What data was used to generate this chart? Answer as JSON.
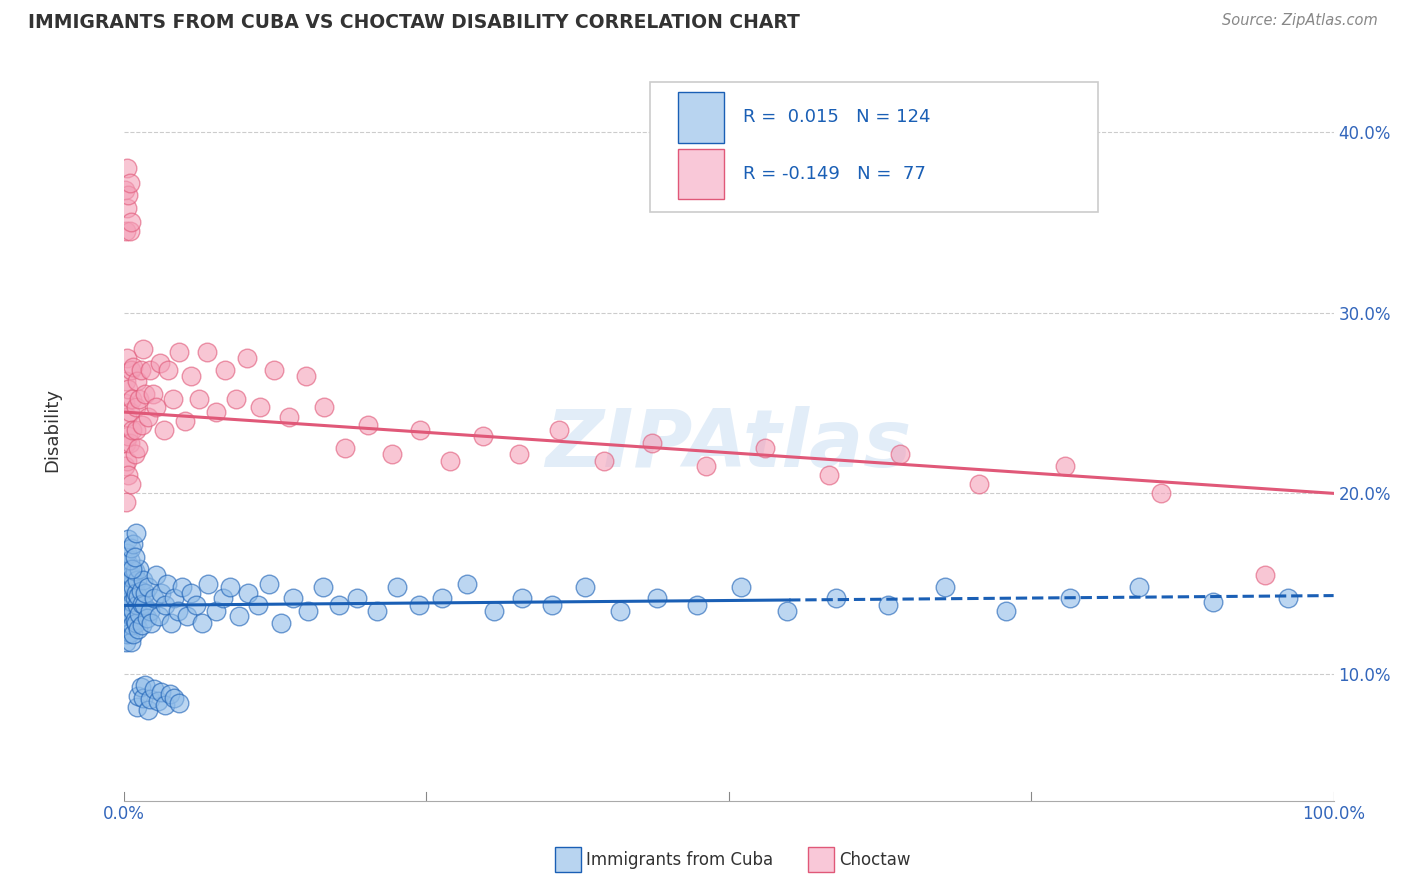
{
  "title": "IMMIGRANTS FROM CUBA VS CHOCTAW DISABILITY CORRELATION CHART",
  "source": "Source: ZipAtlas.com",
  "ylabel": "Disability",
  "yticks": [
    0.1,
    0.2,
    0.3,
    0.4
  ],
  "ytick_labels": [
    "10.0%",
    "20.0%",
    "30.0%",
    "40.0%"
  ],
  "xlim": [
    0.0,
    1.0
  ],
  "ylim": [
    0.03,
    0.44
  ],
  "watermark": "ZIPAtlas",
  "blue_line_x0": 0.0,
  "blue_line_x1": 0.55,
  "blue_line_xd0": 0.55,
  "blue_line_xd1": 1.0,
  "blue_line_y0": 0.138,
  "blue_line_y1": 0.141,
  "pink_line_x0": 0.0,
  "pink_line_x1": 1.0,
  "pink_line_y0": 0.245,
  "pink_line_y1": 0.2,
  "scatter_color_blue": "#90bce8",
  "scatter_color_pink": "#f4a0b8",
  "line_color_blue": "#1a5fb5",
  "line_color_pink": "#e05878",
  "legend_box_blue": "#b8d4f0",
  "legend_box_pink": "#f9c8d8",
  "blue_scatter_x": [
    0.001,
    0.001,
    0.001,
    0.002,
    0.002,
    0.002,
    0.002,
    0.002,
    0.003,
    0.003,
    0.003,
    0.003,
    0.003,
    0.004,
    0.004,
    0.004,
    0.004,
    0.005,
    0.005,
    0.005,
    0.005,
    0.006,
    0.006,
    0.006,
    0.006,
    0.007,
    0.007,
    0.007,
    0.008,
    0.008,
    0.008,
    0.009,
    0.009,
    0.009,
    0.01,
    0.01,
    0.011,
    0.011,
    0.012,
    0.012,
    0.013,
    0.013,
    0.014,
    0.015,
    0.015,
    0.016,
    0.017,
    0.018,
    0.019,
    0.02,
    0.022,
    0.023,
    0.025,
    0.027,
    0.029,
    0.031,
    0.034,
    0.036,
    0.039,
    0.042,
    0.045,
    0.048,
    0.052,
    0.056,
    0.06,
    0.065,
    0.07,
    0.076,
    0.082,
    0.088,
    0.095,
    0.103,
    0.111,
    0.12,
    0.13,
    0.14,
    0.152,
    0.165,
    0.178,
    0.193,
    0.209,
    0.226,
    0.244,
    0.263,
    0.284,
    0.306,
    0.329,
    0.354,
    0.381,
    0.41,
    0.441,
    0.474,
    0.51,
    0.548,
    0.589,
    0.632,
    0.679,
    0.729,
    0.782,
    0.839,
    0.9,
    0.962,
    0.003,
    0.004,
    0.005,
    0.006,
    0.007,
    0.008,
    0.009,
    0.01,
    0.011,
    0.012,
    0.014,
    0.016,
    0.018,
    0.02,
    0.022,
    0.025,
    0.028,
    0.031,
    0.034,
    0.038,
    0.042,
    0.046
  ],
  "blue_scatter_y": [
    0.14,
    0.125,
    0.152,
    0.133,
    0.146,
    0.118,
    0.158,
    0.129,
    0.141,
    0.156,
    0.122,
    0.148,
    0.135,
    0.143,
    0.161,
    0.128,
    0.152,
    0.137,
    0.149,
    0.123,
    0.158,
    0.132,
    0.145,
    0.118,
    0.155,
    0.14,
    0.127,
    0.153,
    0.135,
    0.148,
    0.122,
    0.142,
    0.157,
    0.13,
    0.145,
    0.128,
    0.152,
    0.138,
    0.143,
    0.125,
    0.158,
    0.133,
    0.146,
    0.139,
    0.127,
    0.152,
    0.138,
    0.145,
    0.131,
    0.148,
    0.135,
    0.128,
    0.142,
    0.155,
    0.132,
    0.145,
    0.138,
    0.15,
    0.128,
    0.142,
    0.135,
    0.148,
    0.132,
    0.145,
    0.138,
    0.128,
    0.15,
    0.135,
    0.142,
    0.148,
    0.132,
    0.145,
    0.138,
    0.15,
    0.128,
    0.142,
    0.135,
    0.148,
    0.138,
    0.142,
    0.135,
    0.148,
    0.138,
    0.142,
    0.15,
    0.135,
    0.142,
    0.138,
    0.148,
    0.135,
    0.142,
    0.138,
    0.148,
    0.135,
    0.142,
    0.138,
    0.148,
    0.135,
    0.142,
    0.148,
    0.14,
    0.142,
    0.167,
    0.175,
    0.163,
    0.17,
    0.158,
    0.172,
    0.165,
    0.178,
    0.082,
    0.088,
    0.093,
    0.087,
    0.094,
    0.08,
    0.086,
    0.092,
    0.085,
    0.09,
    0.083,
    0.089,
    0.087,
    0.084
  ],
  "pink_scatter_x": [
    0.001,
    0.001,
    0.002,
    0.002,
    0.002,
    0.003,
    0.003,
    0.003,
    0.004,
    0.004,
    0.004,
    0.005,
    0.005,
    0.006,
    0.006,
    0.007,
    0.007,
    0.008,
    0.009,
    0.01,
    0.01,
    0.011,
    0.012,
    0.013,
    0.014,
    0.015,
    0.016,
    0.018,
    0.02,
    0.022,
    0.024,
    0.027,
    0.03,
    0.033,
    0.037,
    0.041,
    0.046,
    0.051,
    0.056,
    0.062,
    0.069,
    0.076,
    0.084,
    0.093,
    0.102,
    0.113,
    0.124,
    0.137,
    0.151,
    0.166,
    0.183,
    0.202,
    0.222,
    0.245,
    0.27,
    0.297,
    0.327,
    0.36,
    0.397,
    0.437,
    0.481,
    0.53,
    0.583,
    0.642,
    0.707,
    0.778,
    0.857,
    0.943,
    0.001,
    0.002,
    0.003,
    0.003,
    0.004,
    0.005,
    0.005,
    0.006
  ],
  "pink_scatter_y": [
    0.215,
    0.25,
    0.228,
    0.262,
    0.195,
    0.242,
    0.218,
    0.275,
    0.232,
    0.258,
    0.21,
    0.245,
    0.228,
    0.268,
    0.205,
    0.252,
    0.235,
    0.27,
    0.222,
    0.248,
    0.235,
    0.262,
    0.225,
    0.252,
    0.268,
    0.238,
    0.28,
    0.255,
    0.242,
    0.268,
    0.255,
    0.248,
    0.272,
    0.235,
    0.268,
    0.252,
    0.278,
    0.24,
    0.265,
    0.252,
    0.278,
    0.245,
    0.268,
    0.252,
    0.275,
    0.248,
    0.268,
    0.242,
    0.265,
    0.248,
    0.225,
    0.238,
    0.222,
    0.235,
    0.218,
    0.232,
    0.222,
    0.235,
    0.218,
    0.228,
    0.215,
    0.225,
    0.21,
    0.222,
    0.205,
    0.215,
    0.2,
    0.155,
    0.368,
    0.345,
    0.38,
    0.358,
    0.365,
    0.345,
    0.372,
    0.35
  ]
}
